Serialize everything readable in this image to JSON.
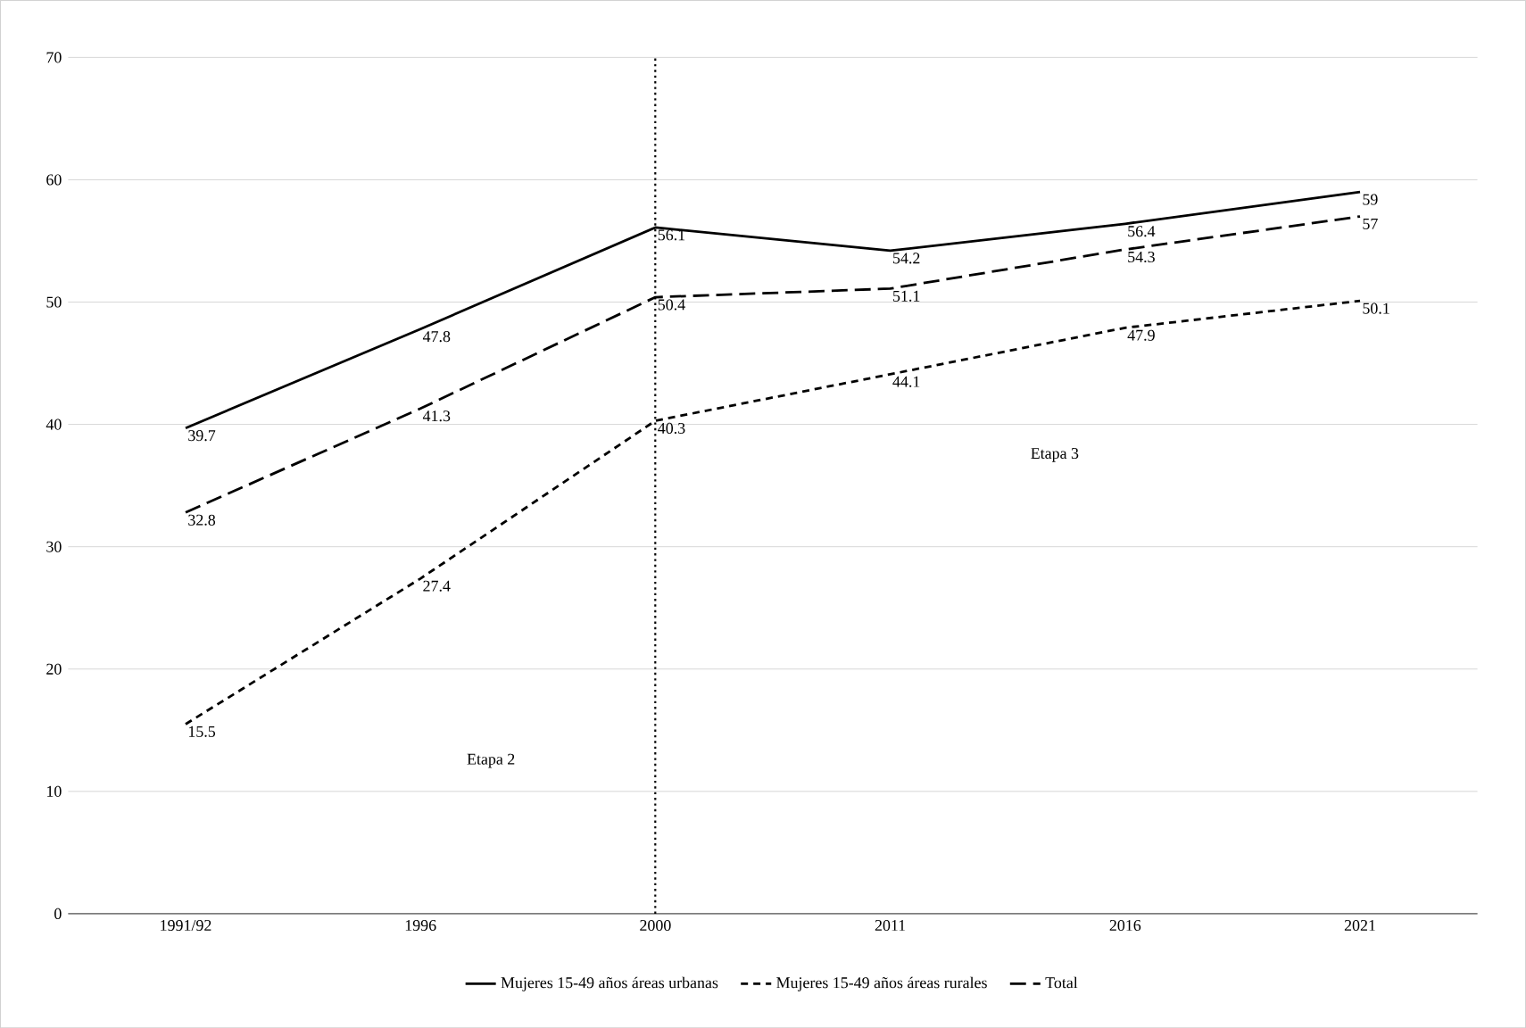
{
  "chart_data": {
    "type": "line",
    "categories": [
      "1991/92",
      "1996",
      "2000",
      "2011",
      "2016",
      "2021"
    ],
    "series": [
      {
        "name": "Mujeres 15-49 años áreas urbanas",
        "color": "#000000",
        "line_style": "solid",
        "values": [
          39.7,
          47.8,
          56.1,
          54.2,
          56.4,
          59
        ]
      },
      {
        "name": "Mujeres 15-49 años áreas rurales",
        "color": "#000000",
        "line_style": "dashed",
        "values": [
          15.5,
          27.4,
          40.3,
          44.1,
          47.9,
          50.1
        ]
      },
      {
        "name": "Total",
        "color": "#000000",
        "line_style": "dashed",
        "values": [
          32.8,
          41.3,
          50.4,
          51.1,
          54.3,
          57
        ]
      }
    ],
    "ylim": [
      0,
      70
    ],
    "yticks": [
      0,
      10,
      20,
      30,
      40,
      50,
      60,
      70
    ],
    "grid": "y",
    "legend": "bottom",
    "data_labels": true,
    "marker": "none",
    "ref_lines": [
      {
        "axis": "x",
        "value": "2000",
        "color": "#000000",
        "line_style": "dotted"
      }
    ],
    "annotations": [
      "Etapa 2",
      "Etapa 3"
    ]
  }
}
